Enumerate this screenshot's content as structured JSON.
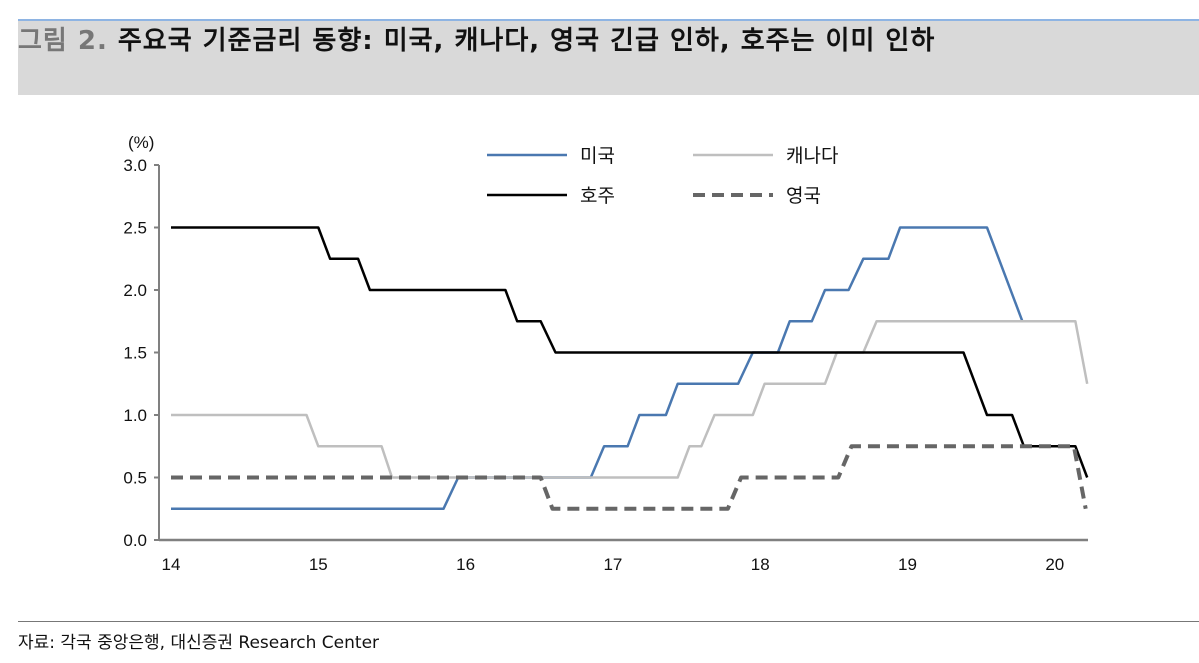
{
  "title": {
    "figure_label": "그림 2.",
    "text": "주요국 기준금리 동향: 미국, 캐나다, 영국 긴급 인하, 호주는 이미 인하"
  },
  "source": "자료: 각국 중앙은행, 대신증권 Research Center",
  "chart_data": {
    "type": "line",
    "title": "주요국 기준금리 동향: 미국, 캐나다, 영국 긴급 인하, 호주는 이미 인하",
    "ylabel": "(%)",
    "xlabel": "",
    "xlim": [
      14,
      20.25
    ],
    "ylim": [
      0,
      3.0
    ],
    "xticks": [
      "14",
      "15",
      "16",
      "17",
      "18",
      "19",
      "20"
    ],
    "yticks": [
      "0.0",
      "0.5",
      "1.0",
      "1.5",
      "2.0",
      "2.5",
      "3.0"
    ],
    "grid": false,
    "legend_position": "top-right",
    "series": [
      {
        "name": "미국",
        "color": "#4a78b0",
        "dash": false,
        "width": 2.5,
        "points": [
          [
            14,
            0.25
          ],
          [
            15.85,
            0.25
          ],
          [
            15.95,
            0.5
          ],
          [
            16.85,
            0.5
          ],
          [
            16.94,
            0.75
          ],
          [
            17.1,
            0.75
          ],
          [
            17.18,
            1.0
          ],
          [
            17.36,
            1.0
          ],
          [
            17.44,
            1.25
          ],
          [
            17.85,
            1.25
          ],
          [
            17.95,
            1.5
          ],
          [
            18.12,
            1.5
          ],
          [
            18.2,
            1.75
          ],
          [
            18.35,
            1.75
          ],
          [
            18.44,
            2.0
          ],
          [
            18.6,
            2.0
          ],
          [
            18.7,
            2.25
          ],
          [
            18.87,
            2.25
          ],
          [
            18.95,
            2.5
          ],
          [
            19.54,
            2.5
          ],
          [
            19.78,
            1.75
          ]
        ]
      },
      {
        "name": "캐나다",
        "color": "#bfbfbf",
        "dash": false,
        "width": 2.5,
        "points": [
          [
            14,
            1.0
          ],
          [
            14.92,
            1.0
          ],
          [
            15.0,
            0.75
          ],
          [
            15.43,
            0.75
          ],
          [
            15.5,
            0.5
          ],
          [
            17.44,
            0.5
          ],
          [
            17.52,
            0.75
          ],
          [
            17.6,
            0.75
          ],
          [
            17.69,
            1.0
          ],
          [
            17.95,
            1.0
          ],
          [
            18.03,
            1.25
          ],
          [
            18.44,
            1.25
          ],
          [
            18.52,
            1.5
          ],
          [
            18.7,
            1.5
          ],
          [
            18.79,
            1.75
          ],
          [
            20.14,
            1.75
          ],
          [
            20.22,
            1.25
          ]
        ]
      },
      {
        "name": "호주",
        "color": "#000000",
        "dash": false,
        "width": 2.5,
        "points": [
          [
            14,
            2.5
          ],
          [
            15.0,
            2.5
          ],
          [
            15.08,
            2.25
          ],
          [
            15.27,
            2.25
          ],
          [
            15.35,
            2.0
          ],
          [
            16.27,
            2.0
          ],
          [
            16.35,
            1.75
          ],
          [
            16.51,
            1.75
          ],
          [
            16.61,
            1.5
          ],
          [
            19.38,
            1.5
          ],
          [
            19.54,
            1.0
          ],
          [
            19.71,
            1.0
          ],
          [
            19.79,
            0.75
          ],
          [
            20.14,
            0.75
          ],
          [
            20.22,
            0.5
          ]
        ]
      },
      {
        "name": "영국",
        "color": "#666666",
        "dash": true,
        "width": 4,
        "points": [
          [
            14,
            0.5
          ],
          [
            16.51,
            0.5
          ],
          [
            16.59,
            0.25
          ],
          [
            17.78,
            0.25
          ],
          [
            17.87,
            0.5
          ],
          [
            18.53,
            0.5
          ],
          [
            18.62,
            0.75
          ],
          [
            20.13,
            0.75
          ],
          [
            20.21,
            0.25
          ]
        ]
      }
    ]
  }
}
